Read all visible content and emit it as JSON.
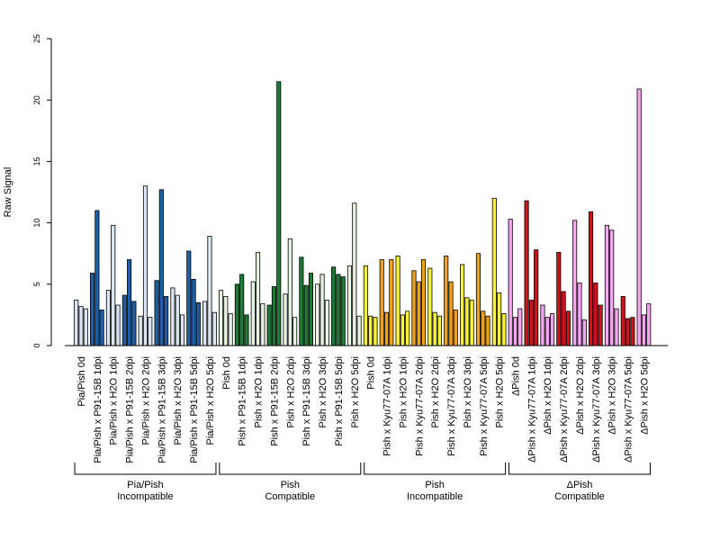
{
  "chart_data": {
    "type": "bar",
    "title": "",
    "xlabel": "",
    "ylabel": "Raw Signal",
    "ylim": [
      0,
      25
    ],
    "yticks": [
      0,
      5,
      10,
      15,
      20,
      25
    ],
    "grid": false,
    "legend": "none",
    "categories": [
      "Pia/Pish 0d",
      "Pia/Pish x P91-15B 1dpi",
      "Pia/Pish x H2O 1dpi",
      "Pia/Pish x P91-15B 2dpi",
      "Pia/Pish x H2O 2dpi",
      "Pia/Pish x P91-15B 3dpi",
      "Pia/Pish x H2O 3dpi",
      "Pia/Pish x P91-15B 5dpi",
      "Pia/Pish x H2O 5dpi",
      "Pish 0d",
      "Pish x P91-15B 1dpi",
      "Pish x H2O 1dpi",
      "Pish x P91-15B 2dpi",
      "Pish x H2O 2dpi",
      "Pish x P91-15B 3dpi",
      "Pish x H2O 3dpi",
      "Pish x P91-15B 5dpi",
      "Pish x H2O 5dpi",
      "Pish 0d",
      "Pish x Kyu77-07A 1dpi",
      "Pish x H2O 1dpi",
      "Pish x Kyu77-07A 2dpi",
      "Pish x H2O 2dpi",
      "Pish x Kyu77-07A 3dpi",
      "Pish x H2O 3dpi",
      "Pish x Kyu77-07A 5dpi",
      "Pish x H2O 5dpi",
      "ΔPish 0d",
      "ΔPish x Kyu77-07A 1dpi",
      "ΔPish x H2O 1dpi",
      "ΔPish x Kyu77-07A 2dpi",
      "ΔPish x H2O 2dpi",
      "ΔPish x Kyu77-07A 3dpi",
      "ΔPish x H2O 3dpi",
      "ΔPish x Kyu77-07A 5dpi",
      "ΔPish x H2O 5dpi"
    ],
    "values": [
      [
        3.7,
        3.2,
        3.0
      ],
      [
        5.9,
        11.0,
        2.9
      ],
      [
        4.5,
        9.8,
        3.3
      ],
      [
        4.1,
        7.0,
        3.6
      ],
      [
        2.4,
        13.0,
        2.3
      ],
      [
        5.3,
        12.7,
        4.0
      ],
      [
        4.7,
        4.1,
        2.5
      ],
      [
        7.7,
        5.4,
        3.5
      ],
      [
        3.6,
        8.9,
        2.7
      ],
      [
        4.5,
        4.0,
        2.6
      ],
      [
        5.0,
        5.8,
        2.5
      ],
      [
        5.2,
        7.6,
        3.4
      ],
      [
        3.3,
        4.8,
        21.5
      ],
      [
        4.2,
        8.7,
        2.3
      ],
      [
        7.2,
        4.9,
        5.9
      ],
      [
        5.0,
        5.8,
        3.7
      ],
      [
        6.4,
        5.8,
        5.6
      ],
      [
        6.5,
        11.6,
        2.4
      ],
      [
        6.5,
        2.4,
        2.3
      ],
      [
        7.0,
        2.7,
        7.0
      ],
      [
        7.3,
        2.5,
        2.8
      ],
      [
        6.1,
        5.2,
        7.0
      ],
      [
        6.3,
        2.7,
        2.4
      ],
      [
        7.3,
        5.2,
        2.9
      ],
      [
        6.6,
        3.9,
        3.7
      ],
      [
        7.5,
        2.8,
        2.4
      ],
      [
        12.0,
        4.3,
        2.6
      ],
      [
        10.3,
        2.3,
        3.0
      ],
      [
        11.8,
        3.7,
        7.8
      ],
      [
        3.3,
        2.3,
        2.6
      ],
      [
        7.6,
        4.4,
        2.8
      ],
      [
        10.2,
        5.1,
        2.1
      ],
      [
        10.9,
        5.1,
        3.3
      ],
      [
        9.8,
        9.4,
        3.0
      ],
      [
        4.0,
        2.2,
        2.3
      ],
      [
        20.9,
        2.5,
        3.4
      ]
    ],
    "groups": [
      {
        "label_line1": "Pia/Pish",
        "label_line2": "Incompatible",
        "start": 0,
        "end": 8,
        "colors": {
          "mock": "#dce6f0",
          "infected": "#1f5fa6"
        }
      },
      {
        "label_line1": "Pish",
        "label_line2": "Compatible",
        "start": 9,
        "end": 17,
        "colors": {
          "mock": "#e8f2e3",
          "infected": "#1e7a35"
        }
      },
      {
        "label_line1": "Pish",
        "label_line2": "Incompatible",
        "start": 18,
        "end": 26,
        "colors": {
          "mock": "#f7f33a",
          "infected": "#f0a21e"
        }
      },
      {
        "label_line1": "ΔPish",
        "label_line2": "Compatible",
        "start": 27,
        "end": 35,
        "colors": {
          "mock": "#f2a7ef",
          "infected": "#d2111f"
        }
      }
    ]
  }
}
